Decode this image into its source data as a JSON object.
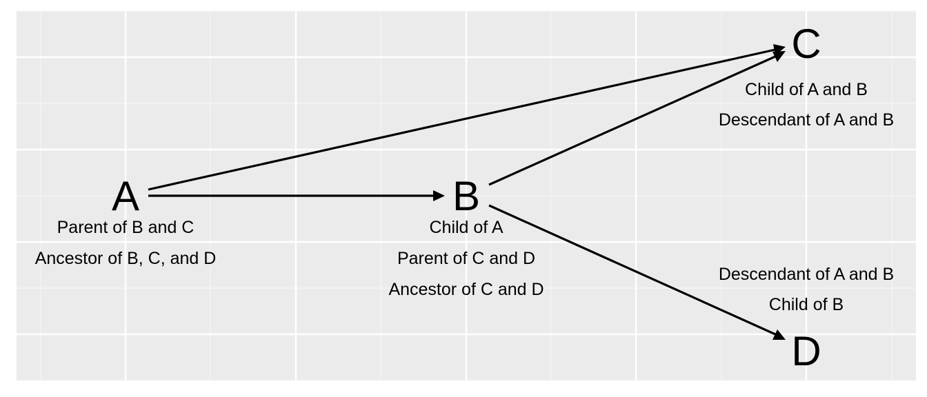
{
  "colors": {
    "panel_background": "#EBEBEB",
    "grid_major": "#FFFFFF",
    "grid_minor": "#F5F5F5",
    "ink": "#000000"
  },
  "nodes": [
    {
      "id": "A",
      "letter": "A",
      "labels": [
        "Parent of B and C",
        "Ancestor of B, C, and D"
      ]
    },
    {
      "id": "B",
      "letter": "B",
      "labels": [
        "Child of A",
        "Parent of C and D",
        "Ancestor of C and D"
      ]
    },
    {
      "id": "C",
      "letter": "C",
      "labels": [
        "Child of A and B",
        "Descendant of A and B"
      ]
    },
    {
      "id": "D",
      "letter": "D",
      "labels": [
        "Descendant of A and B",
        "Child of B"
      ]
    }
  ],
  "edges": [
    {
      "from": "A",
      "to": "B"
    },
    {
      "from": "A",
      "to": "C"
    },
    {
      "from": "B",
      "to": "C"
    },
    {
      "from": "B",
      "to": "D"
    }
  ]
}
